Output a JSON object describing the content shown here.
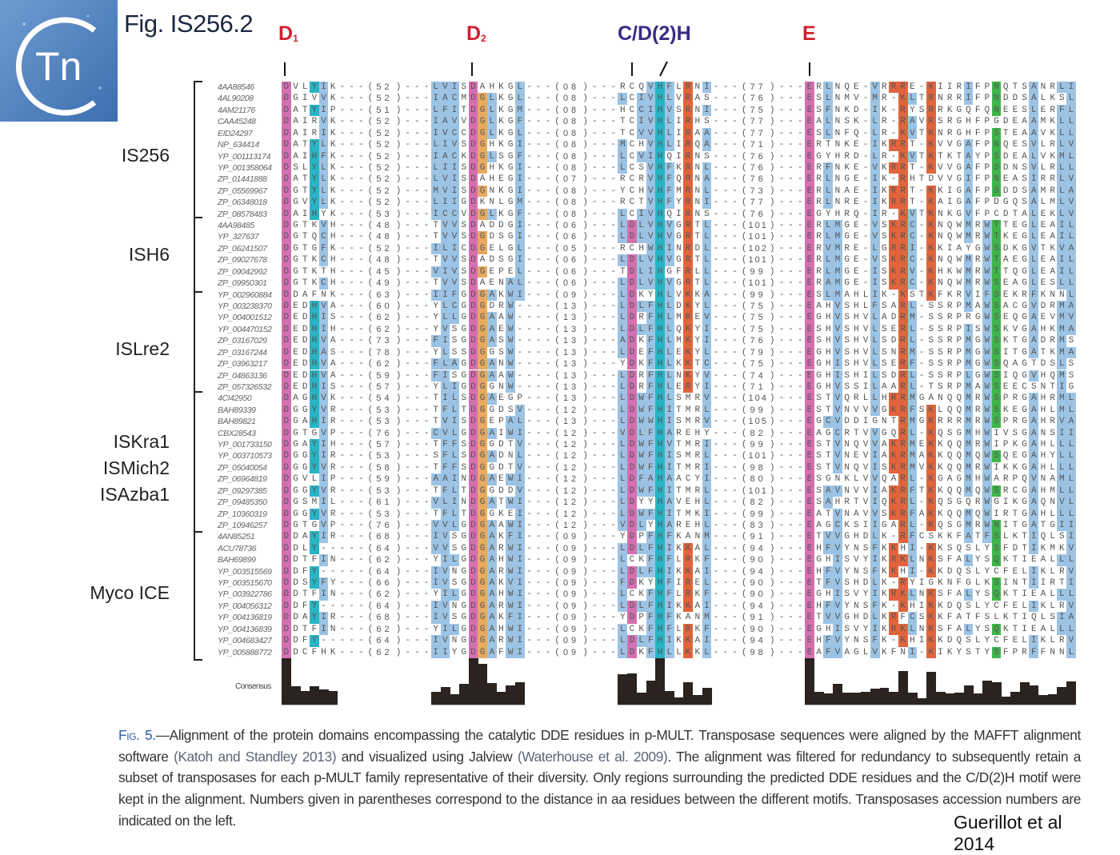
{
  "logo": {
    "text": "Tn"
  },
  "title": "Fig. IS256.2",
  "motifs": {
    "d1": "D",
    "d1_sub": "1",
    "d2": "D",
    "d2_sub": "2",
    "cdh": "C/D(2)H",
    "e": "E"
  },
  "groups": [
    "IS256",
    "ISH6",
    "ISLre2",
    "ISKra1",
    "ISMich2",
    "ISAzba1",
    "Myco ICE"
  ],
  "consensus_label": "Consensus",
  "colors": {
    "hydrophobic": "#9cc3e4",
    "positive": "#e0653d",
    "negative": "#d470b0",
    "polar": "#3fb54b",
    "glycine": "#e8aa5f",
    "proline": "#d4d425",
    "aromatic": "#27b5c6",
    "motif_red": "#d0202e",
    "motif_purple": "#3b2a86"
  },
  "rows": [
    {
      "acc": "4AA88546",
      "s1": "DVLYIK",
      "g1": "52",
      "s2": "LVISDAHKGL",
      "g2": "08",
      "s3": "RCQVHFLRNI",
      "g3": "77",
      "s4": "ERLNQE-VRRRE-KIIRIFPNQTSANRLI"
    },
    {
      "acc": "4AL90208",
      "s1": "DGIVVK",
      "g1": "52",
      "s2": "IACMDGLKGL",
      "g2": "08",
      "s3": "LCIVHLVRAS",
      "g3": "76",
      "s4": "ESLNMV-MR-KLTRNRRIFPNDDSALKSL"
    },
    {
      "acc": "4AM21176",
      "s1": "DATYIP",
      "g1": "51",
      "s2": "LFITDGLKGM",
      "g2": "08",
      "s3": "HCCIHVSRNI",
      "g3": "75",
      "s4": "ESFNKD-IK-RYSRRKGQFQNEESLERFL"
    },
    {
      "acc": "CAA45248",
      "s1": "DAIRVK",
      "g1": "52",
      "s2": "IAVVDGLKGF",
      "g2": "08",
      "s3": "TCIVHLIRHS",
      "g3": "77",
      "s4": "EALNSK-LR-RAVRSRGHFPGDEAAMKLL"
    },
    {
      "acc": "EID24297",
      "s1": "DAIRIK",
      "g1": "52",
      "s2": "IVCCDGLKGL",
      "g2": "08",
      "s3": "TCVVHLIRAA",
      "g3": "77",
      "s4": "ESLNFQ-LR-KVTKNRGHFPSTEAAVKLL"
    },
    {
      "acc": "NP_634414",
      "s1": "DATYLK",
      "g1": "52",
      "s2": "LIVSDGHKGI",
      "g2": "08",
      "s3": "MCHVHLIRQA",
      "g3": "71",
      "s4": "ERTNKE-IKRRT-KVVGAFPNQESVLRLV"
    },
    {
      "acc": "YP_001113174",
      "s1": "DAIHFK",
      "g1": "52",
      "s2": "IACKDGLSGF",
      "g2": "08",
      "s3": "LCVIHQIRNS",
      "g3": "76",
      "s4": "EGYHRD-LR-KVTKTKTAYPSDEALVKML"
    },
    {
      "acc": "YP_001358064",
      "s1": "DSLYLK",
      "g1": "52",
      "s2": "LIISDGHKGI",
      "g2": "08",
      "s3": "LCSVHFKRNL",
      "g3": "76",
      "s4": "ERFNKE-VKRRT-KVVGAFPSDNSVLRLL"
    },
    {
      "acc": "ZP_01441888",
      "s1": "DATYLK",
      "g1": "52",
      "s2": "LVISDAHEGI",
      "g2": "07",
      "s3": "RCRVHFQRNA",
      "g3": "76",
      "s4": "ERLNGE-IK-RHTDVVGIFPNEASIRRLV"
    },
    {
      "acc": "ZP_05569967",
      "s1": "DGTYLK",
      "g1": "52",
      "s2": "MVISDGNKGI",
      "g2": "08",
      "s3": "YCHVHFMRNL",
      "g3": "73",
      "s4": "ERLNAE-IKRRT-KKIGAFPSDDSAMRLA"
    },
    {
      "acc": "ZP_06348018",
      "s1": "DGVYLK",
      "g1": "52",
      "s2": "LIIGDKNLGM",
      "g2": "08",
      "s3": "RCTVHFYRNI",
      "g3": "77",
      "s4": "ERLNRE-IKRRT-KAIGAFPDGQSALMLV"
    },
    {
      "acc": "ZP_08578483",
      "s1": "DAIHYK",
      "g1": "53",
      "s2": "ICCVDGLKGF",
      "g2": "08",
      "s3": "LCIVHQIRNS",
      "g3": "76",
      "s4": "EGYHRQ-IR-KVTKNKGVFPCDTALEKLV"
    },
    {
      "acc": "4AA98485",
      "s1": "DGTKVH",
      "g1": "48",
      "s2": "TVVSDADDGI",
      "g2": "06",
      "s3": "LDLVHVGRTL",
      "g3": "101",
      "s4": "ERLMGE-VSKRC-KNQWMRWTTEGLEAIL"
    },
    {
      "acc": "YP_327637",
      "s1": "DGTQCH",
      "g1": "48",
      "s2": "TVVSDGDSGI",
      "g2": "06",
      "s3": "LDLVHVGRTL",
      "g3": "101",
      "s4": "ERLMGE-VSKRC-KNQWMRWTKEGLEAIL"
    },
    {
      "acc": "ZP_06241507",
      "s1": "DGTGFK",
      "g1": "52",
      "s2": "ILICDGELGL",
      "g2": "05",
      "s3": "RCHWHINRDL",
      "g3": "102",
      "s4": "ERVMRE-LGRRI-KKIAYGWSDKGVTKVA"
    },
    {
      "acc": "ZP_09027678",
      "s1": "DGTKCH",
      "g1": "48",
      "s2": "TVVSDADSGI",
      "g2": "06",
      "s3": "LDLVHVGRTL",
      "g3": "101",
      "s4": "ERLMGE-VSKRC-KNQWMRWTAEGLEAIL"
    },
    {
      "acc": "ZP_09042992",
      "s1": "DGTKTH",
      "g1": "45",
      "s2": "VIVSDGEPEL",
      "g2": "06",
      "s3": "TDLIHGFRLL",
      "g3": "99",
      "s4": "ERLMGE-ISKRV-KHKWMRWTTQGLEAIL"
    },
    {
      "acc": "ZP_09950301",
      "s1": "DGTKCH",
      "g1": "49",
      "s2": "TVVSDAENAL",
      "g2": "06",
      "s3": "LDLVHVGRTL",
      "g3": "101",
      "s4": "ERAMGE-ISKRC-KNQWMRWSEAGLESLL"
    },
    {
      "acc": "YP_002960884",
      "s1": "DDAFNK",
      "g1": "63",
      "s2": "IIFGDGAKWI",
      "g2": "09",
      "s3": "LDKYHLVKKA",
      "g3": "99",
      "s4": "ESLMAHLIK-KSTKFKRVIFSEKRFKNNL"
    },
    {
      "acc": "YP_003238370",
      "s1": "DEDHVA",
      "g1": "60",
      "s2": "YLCGDGDRW-",
      "g2": "13",
      "s3": "LDLFHLDKYL",
      "g3": "75",
      "s4": "EAHVSHLFSARL-SSRPMAWSACGVDRMA"
    },
    {
      "acc": "YP_004001512",
      "s1": "DEDHIS",
      "g1": "62",
      "s2": "YLLGDGAAW-",
      "g2": "13",
      "s3": "LDRFHLMREV",
      "g3": "75",
      "s4": "EGHVSHVLADRM-SSRPRGWSEQGAEVMV"
    },
    {
      "acc": "YP_004470152",
      "s1": "DEDHIH",
      "g1": "62",
      "s2": "YVSGDGAEW-",
      "g2": "13",
      "s3": "LDLFHLQKYI",
      "g3": "75",
      "s4": "ESHVSHVLSERL-SSRPISWSKVGAHKMA"
    },
    {
      "acc": "ZP_03167029",
      "s1": "DEDHVA",
      "g1": "73",
      "s2": "FISGDGASW-",
      "g2": "13",
      "s3": "ADKFHLMKYI",
      "g3": "76",
      "s4": "ESHVSHVLSDRL-SSRPMGWSKTGADRMS"
    },
    {
      "acc": "ZP_03167244",
      "s1": "DEDHAS",
      "g1": "78",
      "s2": "YLSSDGGSW-",
      "g2": "13",
      "s3": "LDEFHLEKYL",
      "g3": "79",
      "s4": "EGHVSHVLSNRM-SSRPMGWSITGATKMA"
    },
    {
      "acc": "ZP_03963217",
      "s1": "DEDHVA",
      "g1": "62",
      "s2": "FLAGDGANW-",
      "g2": "13",
      "s3": "YDKFHLKKTC",
      "g3": "75",
      "s4": "EGHISHVLSERF-SSRPMGWSQAGTDSLS"
    },
    {
      "acc": "ZP_04863136",
      "s1": "DEDHVA",
      "g1": "59",
      "s2": "FISGDGAAW-",
      "g2": "13",
      "s3": "LDRFHLNKYV",
      "g3": "74",
      "s4": "EGHISHILSDRL-SSRPLGWSIQGVHQMS"
    },
    {
      "acc": "ZP_057326532",
      "s1": "DEDHIS",
      "g1": "57",
      "s2": "YLIGDGGNW-",
      "g2": "13",
      "s3": "LDRFHLERYI",
      "g3": "71",
      "s4": "EGHVSSILAARL-TSRPMAWSEECSNTIG"
    },
    {
      "acc": "4CI42950",
      "s1": "DAGHVK",
      "g1": "54",
      "s2": "TILSDGAEGP",
      "g2": "13",
      "s3": "LDWFHLSMRV",
      "g3": "104",
      "s4": "ESTVQRLLHRRMGANQQMRWSPRGAHRML"
    },
    {
      "acc": "BAH89339",
      "s1": "DGGYVR",
      "g1": "53",
      "s2": "TFLTDGGDSV",
      "g2": "12",
      "s3": "LDWFHITMRL",
      "g3": "99",
      "s4": "ESTVNVVVGKRFSKLQQMRWSKEGAHLML"
    },
    {
      "acc": "BAH89821",
      "s1": "DGAHIR",
      "g1": "53",
      "s2": "TVISDGEPAL",
      "g2": "13",
      "s3": "LDWWHISMRV",
      "g3": "105",
      "s4": "EGCVDDIGNTRMGKRRRMRWSPRGAHRVA"
    },
    {
      "acc": "CBX28543",
      "s1": "DGTGVP",
      "g1": "76",
      "s2": "CVLGDGAIWI",
      "g2": "12",
      "s3": "VDLFHAREHY",
      "g3": "82",
      "s4": "EAGCRTVVGQRL-KQSGMHWIVSGANSII"
    },
    {
      "acc": "YP_001733150",
      "s1": "DGAYIH",
      "g1": "57",
      "s2": "TFFSDGGDTV",
      "g2": "12",
      "s3": "LDWFHVTMRI",
      "g3": "99",
      "s4": "ESTVNQVVAKRMEKKQQMRWIPKGAHLLL"
    },
    {
      "acc": "YP_003710573",
      "s1": "DGGYIR",
      "g1": "53",
      "s2": "SFLSDGADNL",
      "g2": "12",
      "s3": "LDWFHISMRL",
      "g3": "101",
      "s4": "ESTVNEVIAKRMAKKQQMQWSQEGAHYLL"
    },
    {
      "acc": "ZP_05040054",
      "s1": "DGGYVR",
      "g1": "58",
      "s2": "TFFSDGGDTV",
      "g2": "12",
      "s3": "LDWFHITMRI",
      "g3": "98",
      "s4": "ESTVNQVISKRMVKKQQMRWIKKGAHLLL"
    },
    {
      "acc": "ZP_06964819",
      "s1": "DGVLIP",
      "g1": "59",
      "s2": "AAINDGAEWI",
      "g2": "12",
      "s3": "LDFAHAACYI",
      "g3": "80",
      "s4": "ESGNKLVVQARL-KGAGMHWARPQVNAML"
    },
    {
      "acc": "ZP_09297385",
      "s1": "DGGYVR",
      "g1": "53",
      "s2": "TFLTDGGDDV",
      "g2": "12",
      "s3": "LDWFHITMRL",
      "g3": "101",
      "s4": "ESAVNVVIAKRFTKKQQMQWSRCGAHMLL"
    },
    {
      "acc": "ZP_09485350",
      "s1": "DGSMIL",
      "g1": "61",
      "s2": "VLINDGATWI",
      "g2": "12",
      "s3": "LDYYHAVEHL",
      "g3": "82",
      "s4": "ESAHRTVIQKRL-KQSGQRWGIKGAQNVL"
    },
    {
      "acc": "ZP_10360319",
      "s1": "DGGYVR",
      "g1": "53",
      "s2": "TFLTDGGKEI",
      "g2": "12",
      "s3": "LDWFHITMKI",
      "g3": "99",
      "s4": "EATVNAVVSKRFAKKQQMQWIRTGAHLLL"
    },
    {
      "acc": "ZP_10946257",
      "s1": "DGTGVP",
      "g1": "76",
      "s2": "VVLGDGAAWI",
      "g2": "12",
      "s3": "VDLYHAREHL",
      "g3": "83",
      "s4": "EAGCKSIIGARL-KQSGMRWNITGATGII"
    },
    {
      "acc": "4AN85251",
      "s1": "DDAYIR",
      "g1": "68",
      "s2": "IVSGDGAKFI",
      "g2": "09",
      "s3": "YDPFHFKANM",
      "g3": "91",
      "s4": "ETVVGHDLK-RFCSKKFATFSLKTIQLSI"
    },
    {
      "acc": "ACU78736",
      "s1": "DDLY--",
      "g1": "64",
      "s2": "VVSGDGARWI",
      "g2": "09",
      "s3": "LDLFHIKKAL",
      "g3": "94",
      "s4": "EHFVYNSFKKHI-KKSQSLYSFDTIKMKV"
    },
    {
      "acc": "BAH69899",
      "s1": "DDTFIN",
      "g1": "62",
      "s2": "YILGDGAHWI",
      "g2": "09",
      "s3": "LCKFHFLRKF",
      "g3": "90",
      "s4": "EGHISVYIKRKLNKSFALYSQKTIEALLL"
    },
    {
      "acc": "YP_003515569",
      "s1": "DDFY--",
      "g1": "64",
      "s2": "IVNGDGARWI",
      "g2": "09",
      "s3": "LDLFHIKKAI",
      "g3": "94",
      "s4": "EHFVYNSFKKHI-KKDQSLYCFELIKLRV"
    },
    {
      "acc": "YP_003515670",
      "s1": "DDSYFY",
      "g1": "66",
      "s2": "IVSGDGAKVI",
      "g2": "09",
      "s3": "FDKYHFIREL",
      "g3": "90",
      "s4": "ETFVSHDLK-RYIGKNFGLKSINTIIRTI"
    },
    {
      "acc": "YP_003922786",
      "s1": "DDTFIN",
      "g1": "62",
      "s2": "YILGDGAHWI",
      "g2": "09",
      "s3": "LCKFHFLRKF",
      "g3": "90",
      "s4": "EGHISVYIKRKLNKSFALYSQKTIEALLL"
    },
    {
      "acc": "YP_004056312",
      "s1": "DDFY--",
      "g1": "64",
      "s2": "IVNGDGARWI",
      "g2": "09",
      "s3": "LDLFHIKKAI",
      "g3": "94",
      "s4": "EHFVYNSFK-KHIKKDQSLYCFELIKLRV"
    },
    {
      "acc": "YP_004136819",
      "s1": "DDAYIR",
      "g1": "68",
      "s2": "IVSGDGAKFI",
      "g2": "09",
      "s3": "YDPFHFKANM",
      "g3": "91",
      "s4": "ETVVGHDLKRFCSKKFATFSLKTIQLSIA"
    },
    {
      "acc": "YP_004136839",
      "s1": "DDTFIN",
      "g1": "62",
      "s2": "YILGDGAHWI",
      "g2": "09",
      "s3": "LCKFHFLRKF",
      "g3": "90",
      "s4": "EGHISVYIKRKLNKSFALYSQKTIEALLL"
    },
    {
      "acc": "YP_004683427",
      "s1": "DDFY--",
      "g1": "64",
      "s2": "IVNGDGARWI",
      "g2": "09",
      "s3": "LDLFHIKKAI",
      "g3": "94",
      "s4": "EHFVYNSFK-KHIKKDQSLYCFELIKLRV"
    },
    {
      "acc": "YP_005888772",
      "s1": "DDCFHK",
      "g1": "62",
      "s2": "IIYGDGAFWI",
      "g2": "09",
      "s3": "LDKFHLLKKL",
      "g3": "98",
      "s4": "EAFVAGLVKFNI-KIKYSTYSFPRFFNNL"
    }
  ],
  "caption": {
    "fig_num": "Fig. 5.",
    "t1": "—Alignment of the protein domains encompassing the catalytic DDE residues in p-MULT. Transposase sequences were aligned by the MAFFT alignment software ",
    "ref1": "(Katoh and Standley 2013)",
    "t2": " and visualized using Jalview ",
    "ref2": "(Waterhouse et al. 2009)",
    "t3": ". The alignment was filtered for redundancy to subsequently retain a subset of transposases for each p-MULT family representative of their diversity. Only regions surrounding the predicted DDE residues and the C/D(2)H motif were kept in the alignment. Numbers given in parentheses correspond to the distance in aa residues between the different motifs. Transposases accession numbers are indicated on the left."
  },
  "author": "Guerillot et al",
  "year": "2014"
}
